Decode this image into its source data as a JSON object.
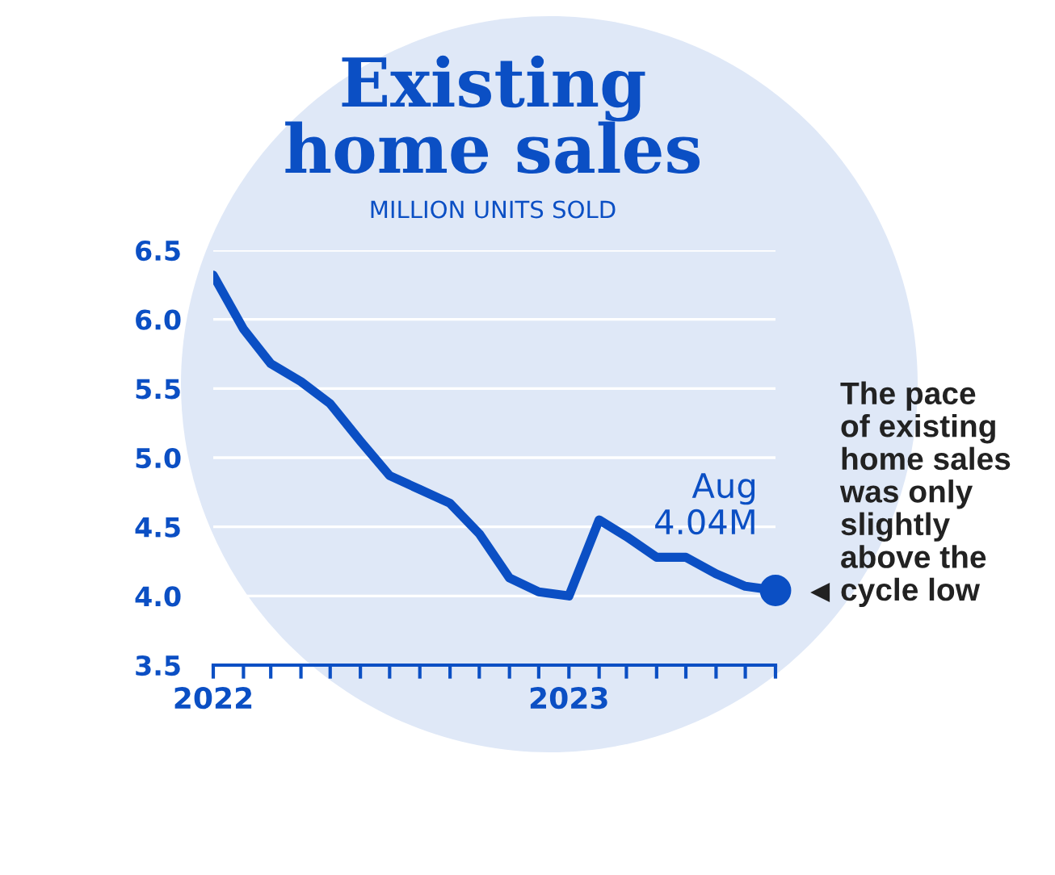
{
  "chart_data": {
    "type": "line",
    "title": "Existing\nhome sales",
    "subtitle": "MILLION UNITS SOLD",
    "x": [
      "2022-01",
      "2022-02",
      "2022-03",
      "2022-04",
      "2022-05",
      "2022-06",
      "2022-07",
      "2022-08",
      "2022-09",
      "2022-10",
      "2022-11",
      "2022-12",
      "2023-01",
      "2023-02",
      "2023-03",
      "2023-04",
      "2023-05",
      "2023-06",
      "2023-07",
      "2023-08"
    ],
    "series": [
      {
        "color": "#0b4fc4",
        "values": [
          6.32,
          5.93,
          5.68,
          5.55,
          5.39,
          5.12,
          4.87,
          4.77,
          4.67,
          4.45,
          4.13,
          4.03,
          4.0,
          4.55,
          4.43,
          4.28,
          4.28,
          4.16,
          4.07,
          4.04
        ]
      }
    ],
    "xlim": [
      "2022-01",
      "2023-08"
    ],
    "xticks": [
      {
        "value": "2022-01",
        "label": "2022"
      },
      {
        "value": "2022-02",
        "label": null
      },
      {
        "value": "2022-03",
        "label": null
      },
      {
        "value": "2022-04",
        "label": null
      },
      {
        "value": "2022-05",
        "label": null
      },
      {
        "value": "2022-06",
        "label": null
      },
      {
        "value": "2022-07",
        "label": null
      },
      {
        "value": "2022-08",
        "label": null
      },
      {
        "value": "2022-09",
        "label": null
      },
      {
        "value": "2022-10",
        "label": null
      },
      {
        "value": "2022-11",
        "label": null
      },
      {
        "value": "2022-12",
        "label": null
      },
      {
        "value": "2023-01",
        "label": "2023"
      },
      {
        "value": "2023-02",
        "label": null
      },
      {
        "value": "2023-03",
        "label": null
      },
      {
        "value": "2023-04",
        "label": null
      },
      {
        "value": "2023-05",
        "label": null
      },
      {
        "value": "2023-06",
        "label": null
      },
      {
        "value": "2023-07",
        "label": null
      },
      {
        "value": "2023-08",
        "label": null
      }
    ],
    "ylim": [
      3.5,
      6.5
    ],
    "yticks": [
      {
        "value": 3.5,
        "label": "3.5"
      },
      {
        "value": 4.0,
        "label": "4.0"
      },
      {
        "value": 4.5,
        "label": "4.5"
      },
      {
        "value": 5.0,
        "label": "5.0"
      },
      {
        "value": 5.5,
        "label": "5.5"
      },
      {
        "value": 6.0,
        "label": "6.0"
      },
      {
        "value": 6.5,
        "label": "6.5"
      }
    ],
    "grid": "y",
    "line_style": "solid",
    "marker": "none",
    "annotations": [
      {
        "text": "Aug\n4.04M",
        "x": "2023-08",
        "y": 4.04
      },
      {
        "text": "The pace\nof existing\nhome sales\nwas only\nslightly\nabove the\ncycle low",
        "x": "2023-08",
        "y": 4.04
      }
    ]
  }
}
